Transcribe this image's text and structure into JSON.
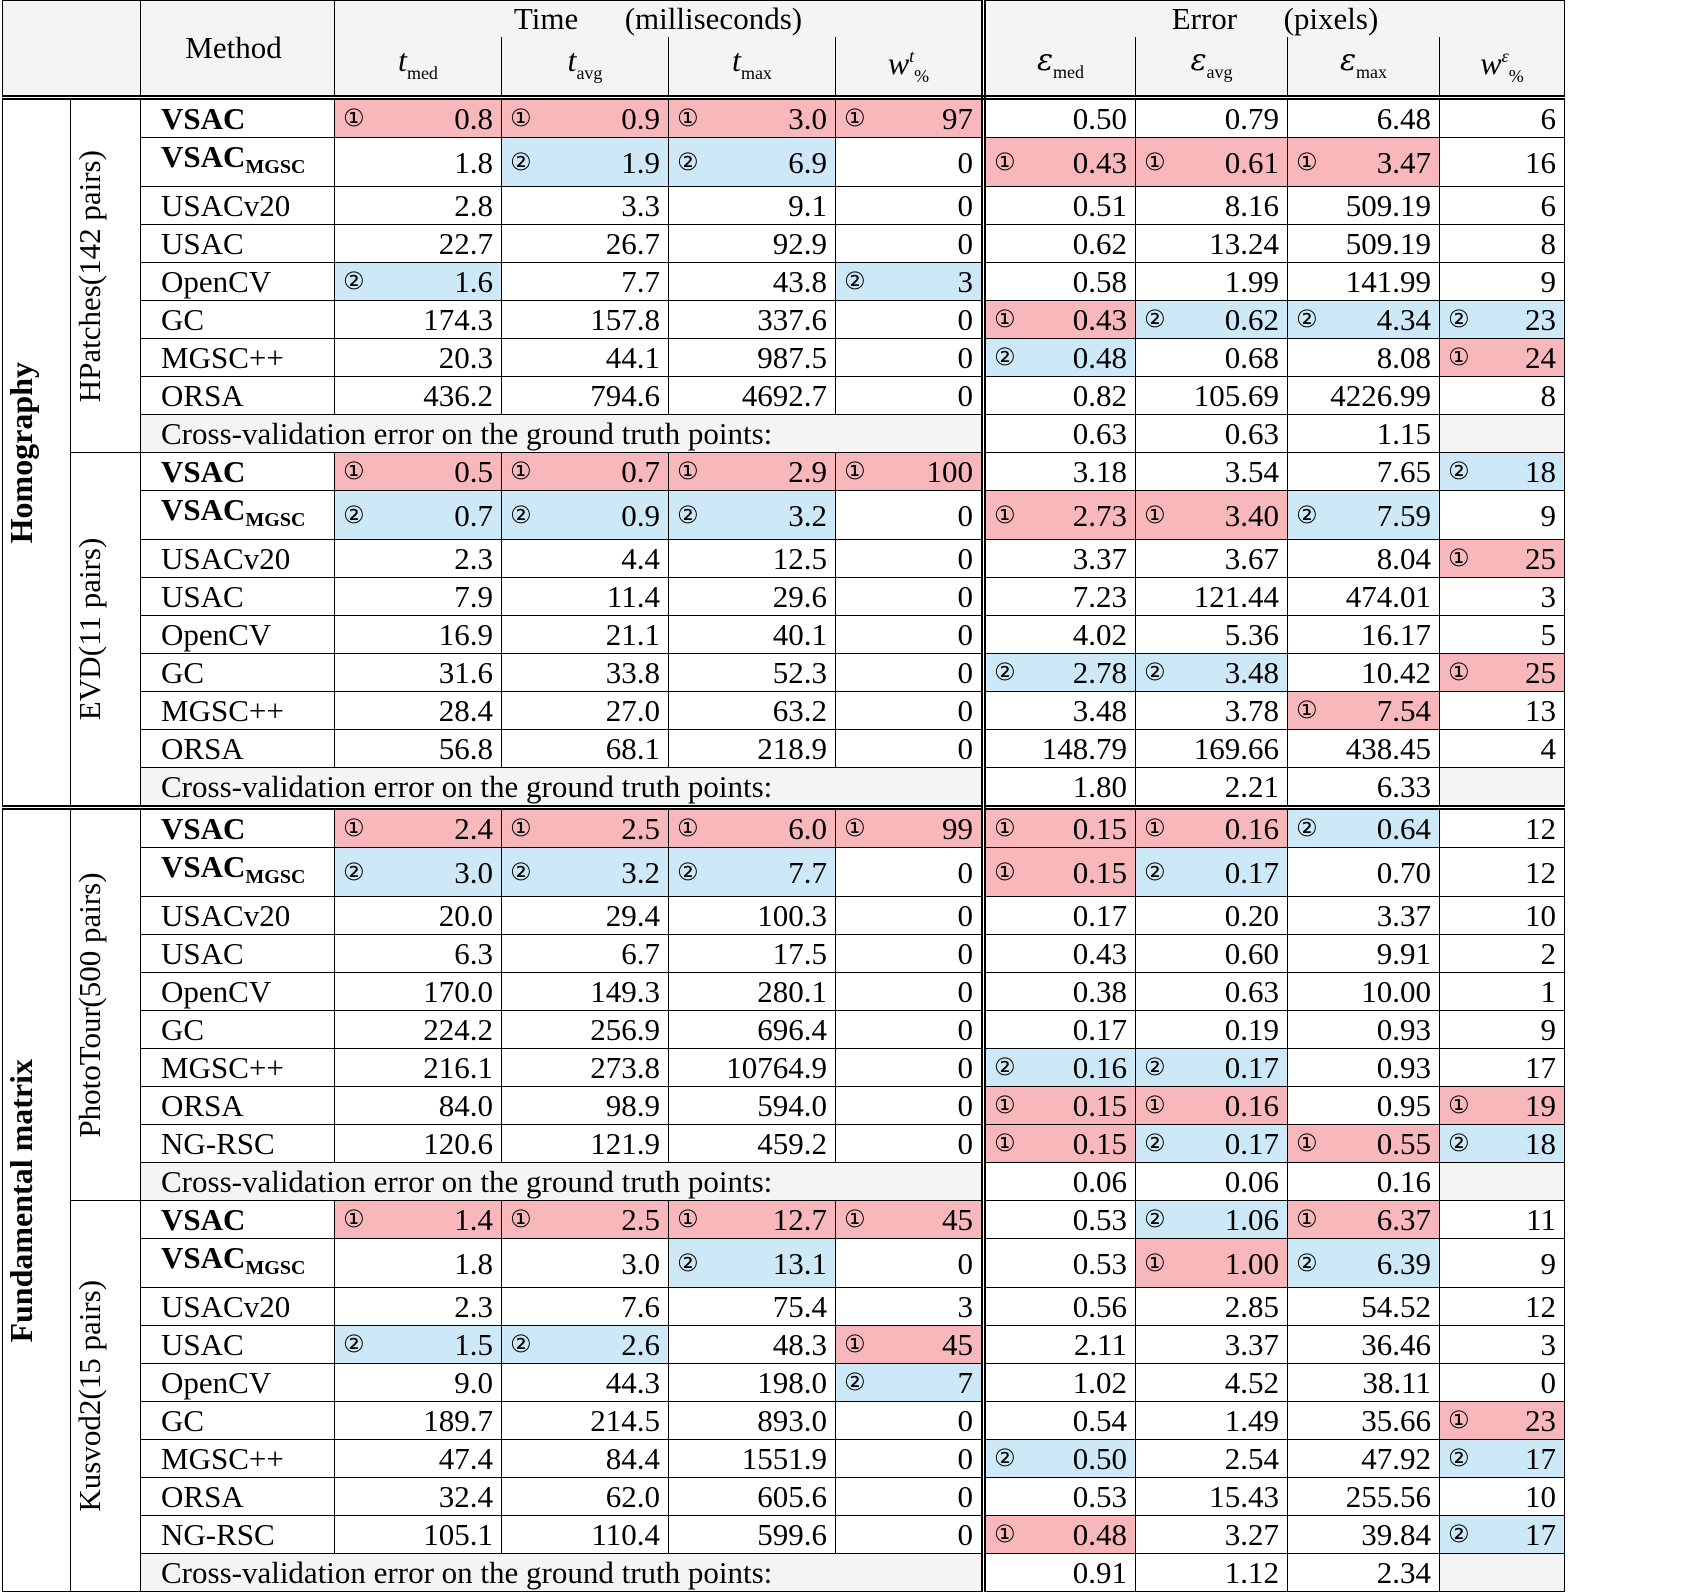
{
  "header": {
    "method": "Method",
    "time_label": "Time      (milliseconds)",
    "error_label": "Error      (pixels)",
    "time_cols": [
      "t",
      "t",
      "t",
      "w"
    ],
    "time_subs": [
      "med",
      "avg",
      "max",
      "%"
    ],
    "time_sup_w": "t",
    "error_cols": [
      "ε",
      "ε",
      "ε",
      "w"
    ],
    "error_subs": [
      "med",
      "avg",
      "max",
      "%"
    ],
    "error_sup_w": "ε"
  },
  "rank_symbols": {
    "1": "①",
    "2": "②"
  },
  "cv_label": "Cross-validation error on the ground truth points:",
  "colors": {
    "rank1": "#f7b7bb",
    "rank2": "#cde9f8"
  },
  "sections": [
    {
      "category": "Homography",
      "datasets": [
        {
          "name": "HPatches",
          "pairs": "(142 pairs)",
          "rows": [
            {
              "method": "VSAC",
              "bold": true,
              "sub": "",
              "vals": [
                "0.8",
                "0.9",
                "3.0",
                "97",
                "0.50",
                "0.79",
                "6.48",
                "6"
              ],
              "ranks": [
                1,
                1,
                1,
                1,
                0,
                0,
                0,
                0
              ]
            },
            {
              "method": "VSAC",
              "bold": true,
              "sub": "MGSC",
              "vals": [
                "1.8",
                "1.9",
                "6.9",
                "0",
                "0.43",
                "0.61",
                "3.47",
                "16"
              ],
              "ranks": [
                0,
                2,
                2,
                0,
                1,
                1,
                1,
                0
              ]
            },
            {
              "method": "USACv20",
              "bold": false,
              "sub": "",
              "vals": [
                "2.8",
                "3.3",
                "9.1",
                "0",
                "0.51",
                "8.16",
                "509.19",
                "6"
              ],
              "ranks": [
                0,
                0,
                0,
                0,
                0,
                0,
                0,
                0
              ]
            },
            {
              "method": "USAC",
              "bold": false,
              "sub": "",
              "vals": [
                "22.7",
                "26.7",
                "92.9",
                "0",
                "0.62",
                "13.24",
                "509.19",
                "8"
              ],
              "ranks": [
                0,
                0,
                0,
                0,
                0,
                0,
                0,
                0
              ]
            },
            {
              "method": "OpenCV",
              "bold": false,
              "sub": "",
              "vals": [
                "1.6",
                "7.7",
                "43.8",
                "3",
                "0.58",
                "1.99",
                "141.99",
                "9"
              ],
              "ranks": [
                2,
                0,
                0,
                2,
                0,
                0,
                0,
                0
              ]
            },
            {
              "method": "GC",
              "bold": false,
              "sub": "",
              "vals": [
                "174.3",
                "157.8",
                "337.6",
                "0",
                "0.43",
                "0.62",
                "4.34",
                "23"
              ],
              "ranks": [
                0,
                0,
                0,
                0,
                1,
                2,
                2,
                2
              ]
            },
            {
              "method": "MGSC++",
              "bold": false,
              "sub": "",
              "vals": [
                "20.3",
                "44.1",
                "987.5",
                "0",
                "0.48",
                "0.68",
                "8.08",
                "24"
              ],
              "ranks": [
                0,
                0,
                0,
                0,
                2,
                0,
                0,
                1
              ]
            },
            {
              "method": "ORSA",
              "bold": false,
              "sub": "",
              "vals": [
                "436.2",
                "794.6",
                "4692.7",
                "0",
                "0.82",
                "105.69",
                "4226.99",
                "8"
              ],
              "ranks": [
                0,
                0,
                0,
                0,
                0,
                0,
                0,
                0
              ]
            }
          ],
          "cv": [
            "0.63",
            "0.63",
            "1.15"
          ]
        },
        {
          "name": "EVD",
          "pairs": "(11 pairs)",
          "rows": [
            {
              "method": "VSAC",
              "bold": true,
              "sub": "",
              "vals": [
                "0.5",
                "0.7",
                "2.9",
                "100",
                "3.18",
                "3.54",
                "7.65",
                "18"
              ],
              "ranks": [
                1,
                1,
                1,
                1,
                0,
                0,
                0,
                2
              ]
            },
            {
              "method": "VSAC",
              "bold": true,
              "sub": "MGSC",
              "vals": [
                "0.7",
                "0.9",
                "3.2",
                "0",
                "2.73",
                "3.40",
                "7.59",
                "9"
              ],
              "ranks": [
                2,
                2,
                2,
                0,
                1,
                1,
                2,
                0
              ]
            },
            {
              "method": "USACv20",
              "bold": false,
              "sub": "",
              "vals": [
                "2.3",
                "4.4",
                "12.5",
                "0",
                "3.37",
                "3.67",
                "8.04",
                "25"
              ],
              "ranks": [
                0,
                0,
                0,
                0,
                0,
                0,
                0,
                1
              ]
            },
            {
              "method": "USAC",
              "bold": false,
              "sub": "",
              "vals": [
                "7.9",
                "11.4",
                "29.6",
                "0",
                "7.23",
                "121.44",
                "474.01",
                "3"
              ],
              "ranks": [
                0,
                0,
                0,
                0,
                0,
                0,
                0,
                0
              ]
            },
            {
              "method": "OpenCV",
              "bold": false,
              "sub": "",
              "vals": [
                "16.9",
                "21.1",
                "40.1",
                "0",
                "4.02",
                "5.36",
                "16.17",
                "5"
              ],
              "ranks": [
                0,
                0,
                0,
                0,
                0,
                0,
                0,
                0
              ]
            },
            {
              "method": "GC",
              "bold": false,
              "sub": "",
              "vals": [
                "31.6",
                "33.8",
                "52.3",
                "0",
                "2.78",
                "3.48",
                "10.42",
                "25"
              ],
              "ranks": [
                0,
                0,
                0,
                0,
                2,
                2,
                0,
                1
              ]
            },
            {
              "method": "MGSC++",
              "bold": false,
              "sub": "",
              "vals": [
                "28.4",
                "27.0",
                "63.2",
                "0",
                "3.48",
                "3.78",
                "7.54",
                "13"
              ],
              "ranks": [
                0,
                0,
                0,
                0,
                0,
                0,
                1,
                0
              ]
            },
            {
              "method": "ORSA",
              "bold": false,
              "sub": "",
              "vals": [
                "56.8",
                "68.1",
                "218.9",
                "0",
                "148.79",
                "169.66",
                "438.45",
                "4"
              ],
              "ranks": [
                0,
                0,
                0,
                0,
                0,
                0,
                0,
                0
              ]
            }
          ],
          "cv": [
            "1.80",
            "2.21",
            "6.33"
          ]
        }
      ]
    },
    {
      "category": "Fundamental matrix",
      "datasets": [
        {
          "name": "PhotoTour",
          "pairs": "(500 pairs)",
          "rows": [
            {
              "method": "VSAC",
              "bold": true,
              "sub": "",
              "vals": [
                "2.4",
                "2.5",
                "6.0",
                "99",
                "0.15",
                "0.16",
                "0.64",
                "12"
              ],
              "ranks": [
                1,
                1,
                1,
                1,
                1,
                1,
                2,
                0
              ]
            },
            {
              "method": "VSAC",
              "bold": true,
              "sub": "MGSC",
              "vals": [
                "3.0",
                "3.2",
                "7.7",
                "0",
                "0.15",
                "0.17",
                "0.70",
                "12"
              ],
              "ranks": [
                2,
                2,
                2,
                0,
                1,
                2,
                0,
                0
              ]
            },
            {
              "method": "USACv20",
              "bold": false,
              "sub": "",
              "vals": [
                "20.0",
                "29.4",
                "100.3",
                "0",
                "0.17",
                "0.20",
                "3.37",
                "10"
              ],
              "ranks": [
                0,
                0,
                0,
                0,
                0,
                0,
                0,
                0
              ]
            },
            {
              "method": "USAC",
              "bold": false,
              "sub": "",
              "vals": [
                "6.3",
                "6.7",
                "17.5",
                "0",
                "0.43",
                "0.60",
                "9.91",
                "2"
              ],
              "ranks": [
                0,
                0,
                0,
                0,
                0,
                0,
                0,
                0
              ]
            },
            {
              "method": "OpenCV",
              "bold": false,
              "sub": "",
              "vals": [
                "170.0",
                "149.3",
                "280.1",
                "0",
                "0.38",
                "0.63",
                "10.00",
                "1"
              ],
              "ranks": [
                0,
                0,
                0,
                0,
                0,
                0,
                0,
                0
              ]
            },
            {
              "method": "GC",
              "bold": false,
              "sub": "",
              "vals": [
                "224.2",
                "256.9",
                "696.4",
                "0",
                "0.17",
                "0.19",
                "0.93",
                "9"
              ],
              "ranks": [
                0,
                0,
                0,
                0,
                0,
                0,
                0,
                0
              ]
            },
            {
              "method": "MGSC++",
              "bold": false,
              "sub": "",
              "vals": [
                "216.1",
                "273.8",
                "10764.9",
                "0",
                "0.16",
                "0.17",
                "0.93",
                "17"
              ],
              "ranks": [
                0,
                0,
                0,
                0,
                2,
                2,
                0,
                0
              ]
            },
            {
              "method": "ORSA",
              "bold": false,
              "sub": "",
              "vals": [
                "84.0",
                "98.9",
                "594.0",
                "0",
                "0.15",
                "0.16",
                "0.95",
                "19"
              ],
              "ranks": [
                0,
                0,
                0,
                0,
                1,
                1,
                0,
                1
              ]
            },
            {
              "method": "NG-RSC",
              "bold": false,
              "sub": "",
              "vals": [
                "120.6",
                "121.9",
                "459.2",
                "0",
                "0.15",
                "0.17",
                "0.55",
                "18"
              ],
              "ranks": [
                0,
                0,
                0,
                0,
                1,
                2,
                1,
                2
              ]
            }
          ],
          "cv": [
            "0.06",
            "0.06",
            "0.16"
          ]
        },
        {
          "name": "Kusvod2",
          "pairs": "(15 pairs)",
          "rows": [
            {
              "method": "VSAC",
              "bold": true,
              "sub": "",
              "vals": [
                "1.4",
                "2.5",
                "12.7",
                "45",
                "0.53",
                "1.06",
                "6.37",
                "11"
              ],
              "ranks": [
                1,
                1,
                1,
                1,
                0,
                2,
                1,
                0
              ]
            },
            {
              "method": "VSAC",
              "bold": true,
              "sub": "MGSC",
              "vals": [
                "1.8",
                "3.0",
                "13.1",
                "0",
                "0.53",
                "1.00",
                "6.39",
                "9"
              ],
              "ranks": [
                0,
                0,
                2,
                0,
                0,
                1,
                2,
                0
              ]
            },
            {
              "method": "USACv20",
              "bold": false,
              "sub": "",
              "vals": [
                "2.3",
                "7.6",
                "75.4",
                "3",
                "0.56",
                "2.85",
                "54.52",
                "12"
              ],
              "ranks": [
                0,
                0,
                0,
                0,
                0,
                0,
                0,
                0
              ]
            },
            {
              "method": "USAC",
              "bold": false,
              "sub": "",
              "vals": [
                "1.5",
                "2.6",
                "48.3",
                "45",
                "2.11",
                "3.37",
                "36.46",
                "3"
              ],
              "ranks": [
                2,
                2,
                0,
                1,
                0,
                0,
                0,
                0
              ]
            },
            {
              "method": "OpenCV",
              "bold": false,
              "sub": "",
              "vals": [
                "9.0",
                "44.3",
                "198.0",
                "7",
                "1.02",
                "4.52",
                "38.11",
                "0"
              ],
              "ranks": [
                0,
                0,
                0,
                2,
                0,
                0,
                0,
                0
              ]
            },
            {
              "method": "GC",
              "bold": false,
              "sub": "",
              "vals": [
                "189.7",
                "214.5",
                "893.0",
                "0",
                "0.54",
                "1.49",
                "35.66",
                "23"
              ],
              "ranks": [
                0,
                0,
                0,
                0,
                0,
                0,
                0,
                1
              ]
            },
            {
              "method": "MGSC++",
              "bold": false,
              "sub": "",
              "vals": [
                "47.4",
                "84.4",
                "1551.9",
                "0",
                "0.50",
                "2.54",
                "47.92",
                "17"
              ],
              "ranks": [
                0,
                0,
                0,
                0,
                2,
                0,
                0,
                2
              ]
            },
            {
              "method": "ORSA",
              "bold": false,
              "sub": "",
              "vals": [
                "32.4",
                "62.0",
                "605.6",
                "0",
                "0.53",
                "15.43",
                "255.56",
                "10"
              ],
              "ranks": [
                0,
                0,
                0,
                0,
                0,
                0,
                0,
                0
              ]
            },
            {
              "method": "NG-RSC",
              "bold": false,
              "sub": "",
              "vals": [
                "105.1",
                "110.4",
                "599.6",
                "0",
                "0.48",
                "3.27",
                "39.84",
                "17"
              ],
              "ranks": [
                0,
                0,
                0,
                0,
                1,
                0,
                0,
                2
              ]
            }
          ],
          "cv": [
            "0.91",
            "1.12",
            "2.34"
          ]
        }
      ]
    }
  ]
}
